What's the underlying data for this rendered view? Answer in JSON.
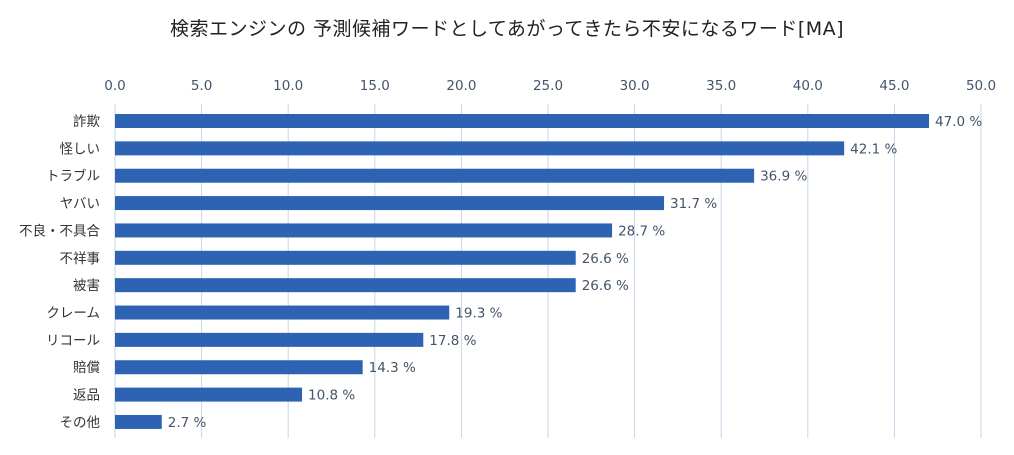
{
  "chart_data": {
    "type": "bar",
    "orientation": "horizontal",
    "title": "検索エンジンの 予測候補ワードとしてあがってきたら不安になるワード[MA]",
    "xlabel": "",
    "ylabel": "",
    "xlim": [
      0,
      50
    ],
    "ticks": [
      "0.0",
      "5.0",
      "10.0",
      "15.0",
      "20.0",
      "25.0",
      "30.0",
      "35.0",
      "40.0",
      "45.0",
      "50.0"
    ],
    "tick_values": [
      0,
      5,
      10,
      15,
      20,
      25,
      30,
      35,
      40,
      45,
      50
    ],
    "axis_position": "top",
    "grid": true,
    "bar_color": "#2e63b4",
    "grid_color": "#c9d6ea",
    "categories": [
      "詐欺",
      "怪しい",
      "トラブル",
      "ヤバい",
      "不良・不具合",
      "不祥事",
      "被害",
      "クレーム",
      "リコール",
      "賠償",
      "返品",
      "その他"
    ],
    "values": [
      47.0,
      42.1,
      36.9,
      31.7,
      28.7,
      26.6,
      26.6,
      19.3,
      17.8,
      14.3,
      10.8,
      2.7
    ],
    "data_labels": [
      "47.0 %",
      "42.1 %",
      "36.9 %",
      "31.7 %",
      "28.7 %",
      "26.6 %",
      "26.6 %",
      "19.3 %",
      "17.8 %",
      "14.3 %",
      "10.8 %",
      "2.7 %"
    ]
  }
}
